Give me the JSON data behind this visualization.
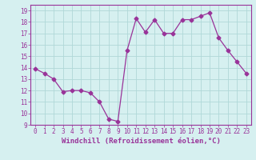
{
  "x": [
    0,
    1,
    2,
    3,
    4,
    5,
    6,
    7,
    8,
    9,
    10,
    11,
    12,
    13,
    14,
    15,
    16,
    17,
    18,
    19,
    20,
    21,
    22,
    23
  ],
  "y": [
    13.9,
    13.5,
    13.0,
    11.9,
    12.0,
    12.0,
    11.8,
    11.0,
    9.5,
    9.3,
    15.5,
    18.3,
    17.1,
    18.2,
    17.0,
    17.0,
    18.2,
    18.2,
    18.5,
    18.8,
    16.6,
    15.5,
    14.5,
    13.5
  ],
  "line_color": "#993399",
  "marker": "D",
  "marker_size": 2.5,
  "bg_color": "#d6f0f0",
  "grid_color": "#b0d8d8",
  "xlabel": "Windchill (Refroidissement éolien,°C)",
  "ylim": [
    9,
    19.5
  ],
  "xlim": [
    -0.5,
    23.5
  ],
  "yticks": [
    9,
    10,
    11,
    12,
    13,
    14,
    15,
    16,
    17,
    18,
    19
  ],
  "xticks": [
    0,
    1,
    2,
    3,
    4,
    5,
    6,
    7,
    8,
    9,
    10,
    11,
    12,
    13,
    14,
    15,
    16,
    17,
    18,
    19,
    20,
    21,
    22,
    23
  ],
  "tick_fontsize": 5.5,
  "xlabel_fontsize": 6.5,
  "label_color": "#993399",
  "spine_color": "#993399"
}
